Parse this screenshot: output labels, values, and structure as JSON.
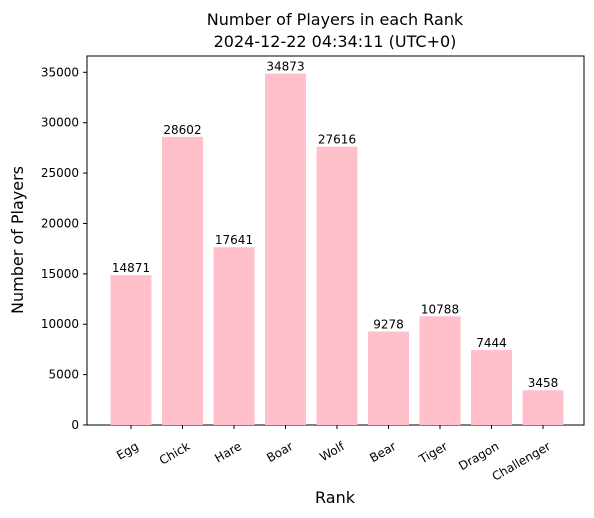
{
  "chart_data": {
    "type": "bar",
    "title_line1": "Number of Players in each Rank",
    "title_line2": "2024-12-22 04:34:11 (UTC+0)",
    "xlabel": "Rank",
    "ylabel": "Number of Players",
    "categories": [
      "Egg",
      "Chick",
      "Hare",
      "Boar",
      "Wolf",
      "Bear",
      "Tiger",
      "Dragon",
      "Challenger"
    ],
    "values": [
      14871,
      28602,
      17641,
      34873,
      27616,
      9278,
      10788,
      7444,
      3458
    ],
    "ylim": [
      0,
      36618
    ],
    "yticks": [
      0,
      5000,
      10000,
      15000,
      20000,
      25000,
      30000,
      35000
    ],
    "bar_color": "#ffc0cb",
    "grid": false,
    "legend": "none"
  }
}
